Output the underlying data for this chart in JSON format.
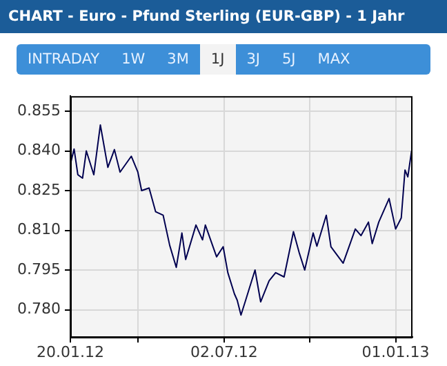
{
  "chart_data": {
    "type": "line",
    "title": "CHART - Euro - Pfund Sterling (EUR-GBP) - 1 Jahr",
    "annotations": [
      "INTRADAY",
      "1W",
      "3M",
      "1J",
      "3J",
      "5J",
      "MAX"
    ],
    "x": [
      "2012-01-20",
      "2012-01-24",
      "2012-01-28",
      "2012-02-02",
      "2012-02-06",
      "2012-02-14",
      "2012-02-21",
      "2012-02-29",
      "2012-03-07",
      "2012-03-13",
      "2012-03-25",
      "2012-04-01",
      "2012-04-05",
      "2012-04-13",
      "2012-04-20",
      "2012-04-28",
      "2012-05-05",
      "2012-05-12",
      "2012-05-18",
      "2012-05-22",
      "2012-06-02",
      "2012-06-09",
      "2012-06-12",
      "2012-06-24",
      "2012-07-01",
      "2012-07-06",
      "2012-07-13",
      "2012-07-16",
      "2012-07-20",
      "2012-07-25",
      "2012-08-04",
      "2012-08-10",
      "2012-08-19",
      "2012-08-26",
      "2012-09-04",
      "2012-09-14",
      "2012-09-20",
      "2012-09-26",
      "2012-10-05",
      "2012-10-09",
      "2012-10-19",
      "2012-10-24",
      "2012-11-06",
      "2012-11-19",
      "2012-11-25",
      "2012-12-03",
      "2012-12-07",
      "2012-12-14",
      "2012-12-25",
      "2013-01-01",
      "2013-01-07",
      "2013-01-11",
      "2013-01-14",
      "2013-01-18"
    ],
    "series": [
      {
        "color": "#000050",
        "values": [
          0.835,
          0.8407,
          0.831,
          0.8297,
          0.84,
          0.831,
          0.8498,
          0.8338,
          0.8405,
          0.832,
          0.838,
          0.832,
          0.825,
          0.826,
          0.817,
          0.8157,
          0.8043,
          0.796,
          0.809,
          0.799,
          0.812,
          0.8064,
          0.812,
          0.8,
          0.8038,
          0.794,
          0.786,
          0.7836,
          0.778,
          0.7836,
          0.795,
          0.783,
          0.7909,
          0.794,
          0.7924,
          0.8095,
          0.8017,
          0.795,
          0.809,
          0.804,
          0.8157,
          0.8038,
          0.7976,
          0.8105,
          0.808,
          0.8131,
          0.805,
          0.8131,
          0.822,
          0.8105,
          0.8147,
          0.8328,
          0.8302,
          0.84
        ]
      }
    ],
    "xlim": [
      "2012-01-20",
      "2013-01-19"
    ],
    "xticks": [
      {
        "value": "2012-01-20",
        "label": "20.01.12"
      },
      {
        "value": "2012-04-01",
        "label": null
      },
      {
        "value": "2012-07-02",
        "label": "02.07.12"
      },
      {
        "value": "2012-10-01",
        "label": null
      },
      {
        "value": "2013-01-01",
        "label": "01.01.13"
      }
    ],
    "ylim": [
      0.7697,
      0.8607
    ],
    "yticks": [
      {
        "value": 0.78,
        "label": "0.780"
      },
      {
        "value": 0.795,
        "label": "0.795"
      },
      {
        "value": 0.81,
        "label": "0.810"
      },
      {
        "value": 0.825,
        "label": "0.825"
      },
      {
        "value": 0.84,
        "label": "0.840"
      },
      {
        "value": 0.855,
        "label": "0.855"
      }
    ],
    "grid": true,
    "legend": false,
    "marker": "none",
    "line_style": "solid"
  }
}
